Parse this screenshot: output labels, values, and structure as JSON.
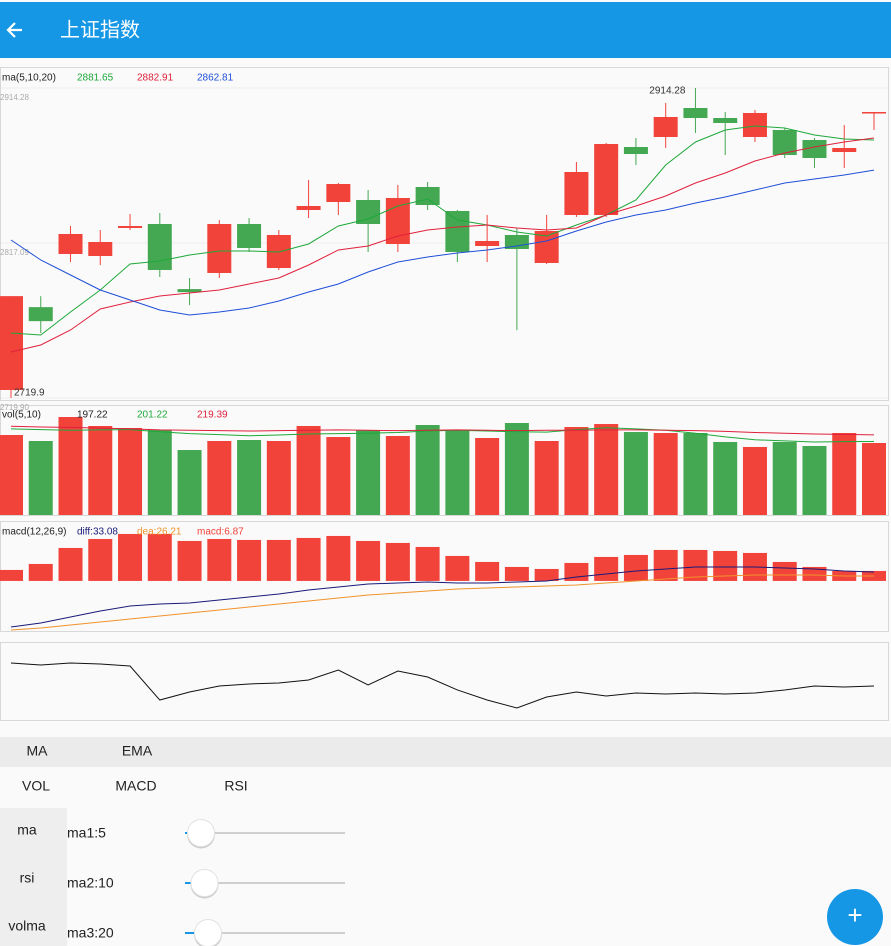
{
  "header": {
    "title": "上证指数"
  },
  "tabs": {
    "indicator_type": [
      {
        "label": "MA",
        "selected": true
      },
      {
        "label": "EMA",
        "selected": false
      }
    ],
    "indicators": [
      {
        "label": "VOL",
        "selected": true
      },
      {
        "label": "MACD",
        "selected": true
      },
      {
        "label": "RSI",
        "selected": false
      }
    ]
  },
  "settings": {
    "sections": [
      {
        "label": "ma",
        "selected": true
      },
      {
        "label": "rsi",
        "selected": false
      },
      {
        "label": "volma",
        "selected": false
      }
    ],
    "sliders": [
      "ma1:5",
      "ma2:10",
      "ma3:20"
    ]
  },
  "fab": "+",
  "chart_data": [
    {
      "type": "candlestick",
      "legend_title": "ma(5,10,20)",
      "up_color": "#f2433a",
      "down_color": "#44a852",
      "ylim": [
        2719.9,
        2914.28
      ],
      "yticks": [
        2914.28,
        2817.09,
        {
          "value": 2719.9,
          "label": "2719.90"
        }
      ],
      "grid": true,
      "max_label": "2914.28",
      "min_label": "2719.9",
      "open": [
        2724.93,
        2776.87,
        2810.2,
        2808.94,
        2826.5,
        2829.01,
        2788.18,
        2798.29,
        2829.01,
        2801.42,
        2837.79,
        2842.8,
        2844.06,
        2816.47,
        2852.21,
        2837.16,
        2815.21,
        2822.11,
        2804.56,
        2834.65,
        2834.65,
        2877.29,
        2883.56,
        2901.74,
        2895.47,
        2883.56,
        2887.95,
        2881.68,
        2874.15,
        2898.61
      ],
      "high": [
        2783.77,
        2783.77,
        2827.75,
        2825.25,
        2835.28,
        2835.91,
        2795.15,
        2831.52,
        2832.77,
        2825.25,
        2856.6,
        2854.72,
        2850.33,
        2853.46,
        2855.34,
        2837.79,
        2834.65,
        2826.5,
        2834.65,
        2867.88,
        2879.79,
        2882.93,
        2904.88,
        2914.28,
        2899.23,
        2900.49,
        2889.2,
        2882.93,
        2891.09,
        2899.23
      ],
      "low": [
        2719.9,
        2760.67,
        2805.18,
        2803.3,
        2825.25,
        2795.78,
        2778.13,
        2795.15,
        2811.45,
        2800.17,
        2832.77,
        2834.65,
        2811.45,
        2811.45,
        2837.79,
        2805.18,
        2805.18,
        2762.41,
        2803.93,
        2833.4,
        2833.4,
        2866.0,
        2876.66,
        2886.07,
        2872.27,
        2880.42,
        2870.39,
        2864.12,
        2864.12,
        2887.95
      ],
      "close": [
        2783.77,
        2768.1,
        2822.74,
        2817.72,
        2827.75,
        2800.17,
        2786.27,
        2829.01,
        2813.96,
        2822.11,
        2840.29,
        2854.09,
        2829.01,
        2845.31,
        2840.92,
        2811.45,
        2818.35,
        2813.33,
        2824.62,
        2861.61,
        2879.17,
        2872.9,
        2896.1,
        2895.47,
        2892.34,
        2898.61,
        2872.27,
        2870.39,
        2876.66,
        2899.23
      ],
      "lines": [
        {
          "color": "#1ea83a",
          "values": [
            2760.67,
            2759.41,
            2773.84,
            2787.63,
            2803.93,
            2805.81,
            2809.57,
            2812.08,
            2812.08,
            2811.46,
            2816.47,
            2827.76,
            2832.15,
            2840.3,
            2844.69,
            2831.52,
            2828.38,
            2824.0,
            2821.49,
            2828.38,
            2834.65,
            2844.06,
            2866.0,
            2880.43,
            2887.95,
            2890.46,
            2889.2,
            2884.81,
            2882.31,
            2881.65
          ]
        },
        {
          "color": "#e0203c",
          "values": [
            2748.76,
            2753.14,
            2762.55,
            2775.72,
            2780.11,
            2783.87,
            2785.75,
            2787.63,
            2791.39,
            2795.15,
            2803.3,
            2812.71,
            2815.22,
            2821.49,
            2825.25,
            2827.13,
            2828.38,
            2826.5,
            2825.25,
            2826.5,
            2834.65,
            2840.3,
            2846.57,
            2854.72,
            2860.99,
            2868.51,
            2873.53,
            2877.29,
            2880.43,
            2882.91
          ]
        },
        {
          "color": "#1f4fd8",
          "values": [
            2818.98,
            2806.44,
            2797.03,
            2787.63,
            2781.36,
            2775.09,
            2771.95,
            2773.84,
            2776.34,
            2780.73,
            2786.38,
            2791.39,
            2798.92,
            2805.19,
            2808.32,
            2810.83,
            2812.71,
            2815.22,
            2818.35,
            2824.62,
            2830.27,
            2834.65,
            2837.79,
            2842.18,
            2845.94,
            2850.33,
            2854.72,
            2857.23,
            2859.73,
            2862.81
          ]
        }
      ]
    },
    {
      "type": "bar",
      "legend_title": "vol(5,10)",
      "up_color": "#f2433a",
      "down_color": "#44a852",
      "ylim": [
        0,
        301.3
      ],
      "values": [
        219.1,
        202.7,
        268.4,
        243.8,
        238.3,
        232.8,
        178.0,
        202.7,
        205.4,
        202.7,
        243.8,
        213.6,
        232.8,
        216.4,
        246.5,
        232.8,
        210.9,
        252.0,
        202.7,
        241.0,
        249.2,
        227.3,
        224.6,
        224.6,
        200.0,
        186.3,
        200.0,
        189.0,
        224.6,
        197.22
      ],
      "lines": [
        {
          "color": "#1ea83a",
          "values": [
            236,
            234,
            232,
            233,
            234,
            228,
            223,
            220,
            217,
            219,
            222,
            223,
            224,
            226,
            230,
            232,
            230,
            228,
            227,
            234,
            239,
            236,
            232,
            224,
            214,
            206,
            203,
            200,
            201,
            201.22
          ]
        },
        {
          "color": "#e0203c",
          "values": [
            243,
            241,
            240,
            238,
            236,
            233,
            232,
            231,
            230,
            231,
            232,
            233,
            232,
            231,
            232,
            233,
            232,
            231,
            232,
            232,
            233,
            233,
            232,
            231,
            229,
            226,
            224,
            222,
            221,
            219.39
          ]
        }
      ]
    },
    {
      "type": "bar",
      "legend_title": "macd(12,26,9)",
      "legend_labels": [
        "diff:33.08",
        "dea:26.21",
        "macd:6.87"
      ],
      "color": "#f2433a",
      "bar_ylim": [
        -34.4,
        41.2
      ],
      "ylim": [
        -68.4,
        120.8
      ],
      "values": [
        7.56,
        11.68,
        22.67,
        28.85,
        32.29,
        32.29,
        27.48,
        28.85,
        28.17,
        28.17,
        29.54,
        30.92,
        27.48,
        26.11,
        23.36,
        17.18,
        13.05,
        9.62,
        8.24,
        12.37,
        16.49,
        17.86,
        21.3,
        21.3,
        20.61,
        19.24,
        13.05,
        9.62,
        6.87,
        6.87
      ],
      "lines": [
        {
          "color": "#1a1a7a",
          "values": [
            -61.52,
            -54.64,
            -44.32,
            -34.0,
            -25.4,
            -21.96,
            -20.24,
            -15.08,
            -9.92,
            -4.76,
            2.12,
            7.28,
            12.44,
            14.16,
            15.88,
            14.16,
            14.16,
            15.88,
            17.6,
            24.48,
            29.64,
            34.8,
            38.24,
            41.68,
            41.68,
            41.68,
            39.96,
            38.24,
            34.8,
            33.08
          ]
        },
        {
          "color": "#f0932b",
          "values": [
            -66.68,
            -63.24,
            -58.08,
            -52.92,
            -47.76,
            -42.6,
            -37.44,
            -32.28,
            -27.12,
            -21.96,
            -16.8,
            -11.64,
            -6.48,
            -3.04,
            0.4,
            3.84,
            5.56,
            7.28,
            9.0,
            10.72,
            14.16,
            17.6,
            21.04,
            24.48,
            26.2,
            27.92,
            27.92,
            27.92,
            26.2,
            26.21
          ]
        }
      ]
    },
    {
      "type": "line",
      "color": "#111111",
      "ylim": [
        0,
        100
      ],
      "values": [
        73.1,
        70.5,
        73.1,
        71.8,
        69.2,
        25.6,
        35.9,
        43.6,
        46.2,
        47.4,
        51.3,
        64.1,
        44.9,
        62.8,
        55.1,
        38.5,
        25.6,
        15.4,
        29.5,
        35.9,
        30.8,
        34.6,
        33.3,
        34.6,
        33.3,
        34.6,
        38.5,
        43.6,
        42.3,
        43.6
      ]
    }
  ]
}
